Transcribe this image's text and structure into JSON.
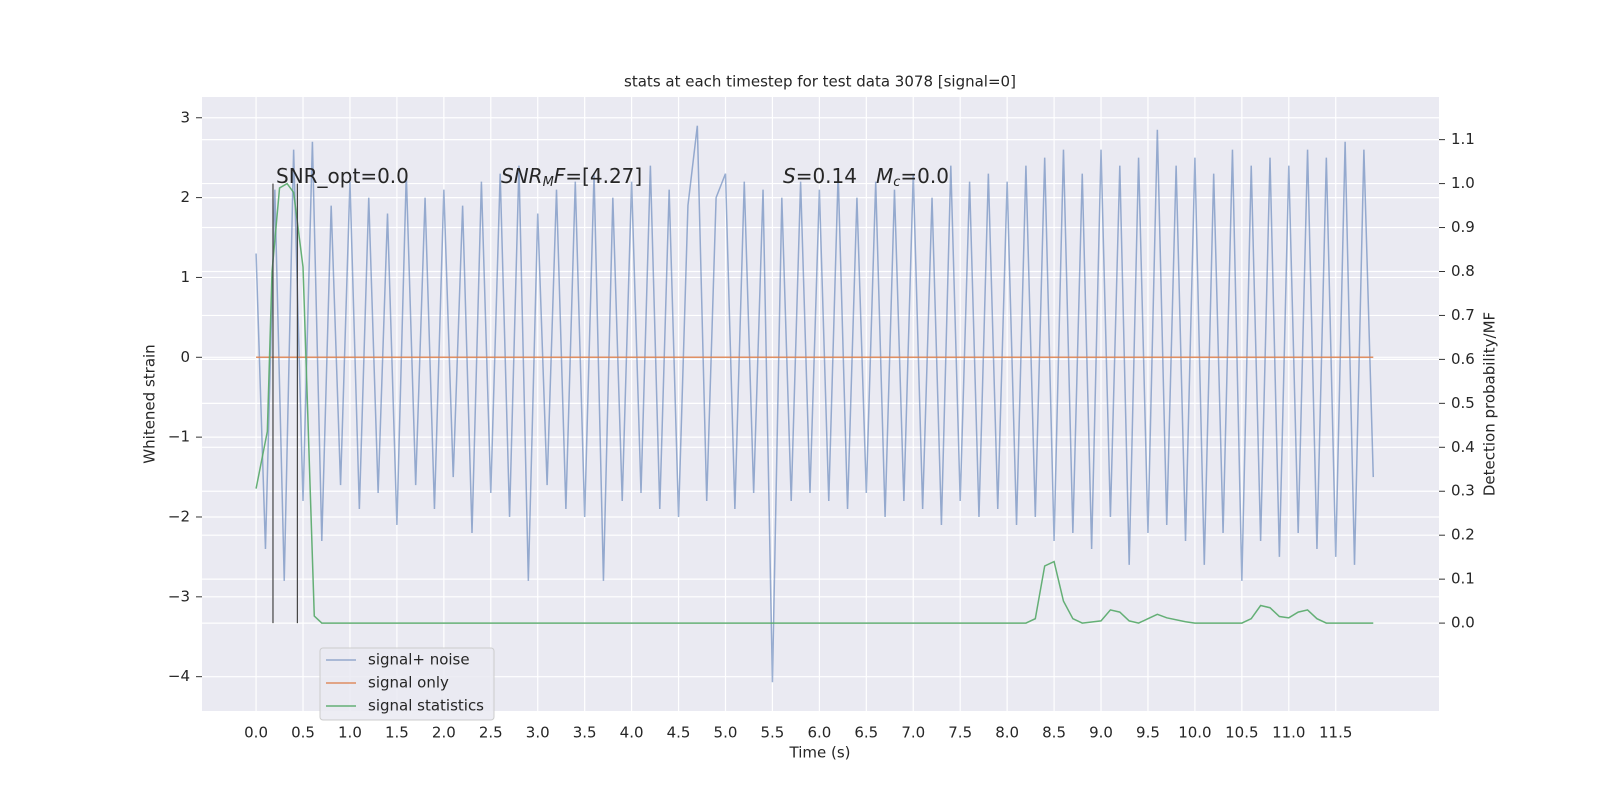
{
  "chart_data": {
    "type": "line",
    "title": "stats at each timestep for test data 3078 [signal=0]",
    "x_label": "Time (s)",
    "y_label": "Whitened strain",
    "y2_label": "Detection probability/MF",
    "xlim": [
      -0.576,
      12.6
    ],
    "ylim": [
      -4.43,
      3.26
    ],
    "y2lim": [
      -0.2,
      1.197
    ],
    "xticks": [
      {
        "value": 0,
        "label": "0.0"
      },
      0.5,
      {
        "value": 1,
        "label": "1.0"
      },
      1.5,
      {
        "value": 2,
        "label": "2.0"
      },
      2.5,
      {
        "value": 3,
        "label": "3.0"
      },
      3.5,
      {
        "value": 4,
        "label": "4.0"
      },
      4.5,
      {
        "value": 5,
        "label": "5.0"
      },
      5.5,
      {
        "value": 6,
        "label": "6.0"
      },
      6.5,
      {
        "value": 7,
        "label": "7.0"
      },
      7.5,
      {
        "value": 8,
        "label": "8.0"
      },
      8.5,
      {
        "value": 9,
        "label": "9.0"
      },
      9.5,
      {
        "value": 10,
        "label": "10.0"
      },
      10.5,
      {
        "value": 11,
        "label": "11.0"
      },
      11.5
    ],
    "yticks": [
      {
        "value": -4,
        "label": "−4"
      },
      {
        "value": -3,
        "label": "−3"
      },
      {
        "value": -2,
        "label": "−2"
      },
      {
        "value": -1,
        "label": "−1"
      },
      0,
      1,
      2,
      3
    ],
    "y2ticks": [
      {
        "value": 0,
        "label": "0.0"
      },
      0.1,
      0.2,
      0.3,
      0.4,
      0.5,
      0.6,
      0.7,
      0.8,
      0.9,
      {
        "value": 1,
        "label": "1.0"
      },
      1.1
    ],
    "grid": true,
    "legend": "lower left",
    "series": [
      {
        "name": "signal+ noise",
        "color": "#4c72b0",
        "x": [
          0,
          0.1,
          0.2,
          0.3,
          0.4,
          0.5,
          0.6,
          0.7,
          0.8,
          0.9,
          1,
          1.1,
          1.2,
          1.3,
          1.4,
          1.5,
          1.6,
          1.7,
          1.8,
          1.9,
          2,
          2.1,
          2.2,
          2.3,
          2.4,
          2.5,
          2.6,
          2.7,
          2.8,
          2.9,
          3,
          3.1,
          3.2,
          3.3,
          3.4,
          3.5,
          3.6,
          3.7,
          3.8,
          3.9,
          4,
          4.1,
          4.2,
          4.3,
          4.4,
          4.5,
          4.6,
          4.7,
          4.8,
          4.9,
          5,
          5.1,
          5.2,
          5.3,
          5.4,
          5.5,
          5.6,
          5.7,
          5.8,
          5.9,
          6,
          6.1,
          6.2,
          6.3,
          6.4,
          6.5,
          6.6,
          6.7,
          6.8,
          6.9,
          7,
          7.1,
          7.2,
          7.3,
          7.4,
          7.5,
          7.6,
          7.7,
          7.8,
          7.9,
          8,
          8.1,
          8.2,
          8.3,
          8.4,
          8.5,
          8.6,
          8.7,
          8.8,
          8.9,
          9,
          9.1,
          9.2,
          9.3,
          9.4,
          9.5,
          9.6,
          9.7,
          9.8,
          9.9,
          10,
          10.1,
          10.2,
          10.3,
          10.4,
          10.5,
          10.6,
          10.7,
          10.8,
          10.9,
          11,
          11.1,
          11.2,
          11.3,
          11.4,
          11.5,
          11.6,
          11.7,
          11.8,
          11.9
        ],
        "values": [
          1.3,
          -2.4,
          2.1,
          -2.8,
          2.6,
          -1.8,
          2.7,
          -2.3,
          1.9,
          -1.6,
          2.2,
          -1.9,
          2.0,
          -1.7,
          1.8,
          -2.1,
          2.3,
          -1.6,
          2.0,
          -1.9,
          2.1,
          -1.5,
          1.9,
          -2.2,
          2.2,
          -1.7,
          2.3,
          -2.0,
          2.4,
          -2.8,
          1.8,
          -1.6,
          2.1,
          -1.9,
          2.2,
          -2.0,
          2.3,
          -2.8,
          2.0,
          -1.8,
          2.2,
          -1.7,
          2.4,
          -1.9,
          2.1,
          -2.0,
          1.9,
          2.9,
          -1.8,
          2.0,
          2.3,
          -1.9,
          2.2,
          -1.7,
          2.1,
          -4.07,
          2.0,
          -1.8,
          2.2,
          -1.7,
          2.1,
          -1.8,
          2.3,
          -1.9,
          2.0,
          -1.7,
          2.2,
          -2.0,
          2.1,
          -1.8,
          2.3,
          -1.9,
          2.0,
          -2.1,
          2.4,
          -1.8,
          2.2,
          -2.0,
          2.3,
          -1.9,
          2.2,
          -2.1,
          2.4,
          -2.0,
          2.5,
          -2.3,
          2.6,
          -2.2,
          2.3,
          -2.4,
          2.6,
          -2.0,
          2.4,
          -2.6,
          2.5,
          -2.2,
          2.85,
          -2.1,
          2.4,
          -2.3,
          2.5,
          -2.6,
          2.3,
          -2.2,
          2.6,
          -2.8,
          2.4,
          -2.3,
          2.5,
          -2.5,
          2.4,
          -2.2,
          2.6,
          -2.4,
          2.5,
          -2.5,
          2.7,
          -2.6,
          2.6,
          -1.5
        ]
      },
      {
        "name": "signal only",
        "color": "#dd8452",
        "x": [
          0,
          11.9
        ],
        "values": [
          0,
          0
        ]
      },
      {
        "name": "signal statistics",
        "color": "#55a868",
        "axis": "y2",
        "x": [
          0,
          0.12,
          0.17,
          0.25,
          0.33,
          0.4,
          0.5,
          0.62,
          0.7,
          8.2,
          8.3,
          8.4,
          8.5,
          8.6,
          8.7,
          8.8,
          9.0,
          9.1,
          9.2,
          9.3,
          9.4,
          9.5,
          9.6,
          9.7,
          9.9,
          10.0,
          10.5,
          10.6,
          10.7,
          10.8,
          10.9,
          11.0,
          11.1,
          11.2,
          11.3,
          11.4,
          11.9
        ],
        "values": [
          0.306,
          0.436,
          0.8,
          0.99,
          1.0,
          0.98,
          0.81,
          0.016,
          0,
          0,
          0.01,
          0.13,
          0.14,
          0.05,
          0.01,
          0,
          0.005,
          0.03,
          0.025,
          0.005,
          0,
          0.01,
          0.02,
          0.012,
          0.003,
          0,
          0,
          0.01,
          0.04,
          0.035,
          0.015,
          0.012,
          0.025,
          0.03,
          0.01,
          0,
          0
        ]
      }
    ],
    "vlines": {
      "color": "#444444",
      "x": [
        0.18,
        0.44
      ],
      "y2": [
        0,
        1
      ]
    },
    "annotations": [
      {
        "parts": [
          {
            "text": "SNR_opt=0.0"
          }
        ]
      },
      {
        "parts": [
          {
            "text": "SNR",
            "style": "italic"
          },
          {
            "text": "M",
            "style": "sub"
          },
          {
            "text": "F",
            "style": "italic"
          },
          {
            "text": "=[4.27]"
          }
        ]
      },
      {
        "parts": [
          {
            "text": "S",
            "style": "italic"
          },
          {
            "text": "=0.14"
          }
        ]
      },
      {
        "parts": [
          {
            "text": "M",
            "style": "italic"
          },
          {
            "text": "c",
            "style": "sub"
          },
          {
            "text": "=0.0"
          }
        ]
      }
    ]
  }
}
